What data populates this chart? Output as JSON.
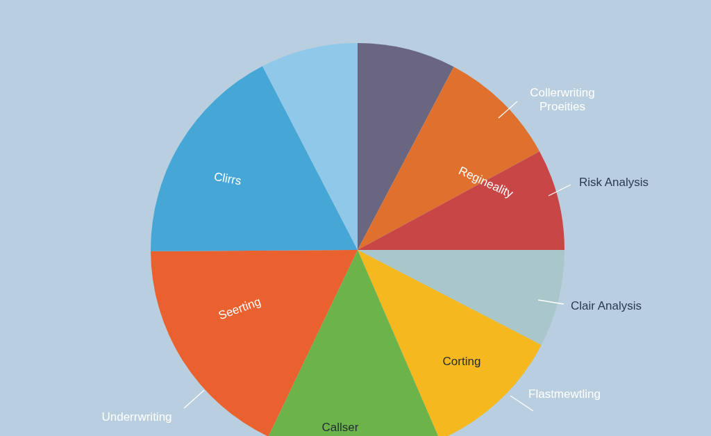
{
  "chart_data": {
    "type": "pie",
    "categories": [
      null,
      "Regineality",
      "Risk Analysis",
      "Clair Analysis",
      "Corting",
      "Callser",
      "Seerting",
      "Clirrs",
      null
    ],
    "values": [
      7.7,
      9.4,
      7.9,
      7.6,
      10.9,
      13.6,
      17.8,
      17.5,
      7.6
    ],
    "colors": [
      "#6a6680",
      "#e0702e",
      "#c94646",
      "#a9c6ca",
      "#f5b81e",
      "#6cb34a",
      "#e9612e",
      "#46a6d6",
      "#8fc8e8"
    ],
    "annotations": [
      "Collerwriting Proeities",
      "Flastmewtling",
      "Underrwriting"
    ]
  }
}
